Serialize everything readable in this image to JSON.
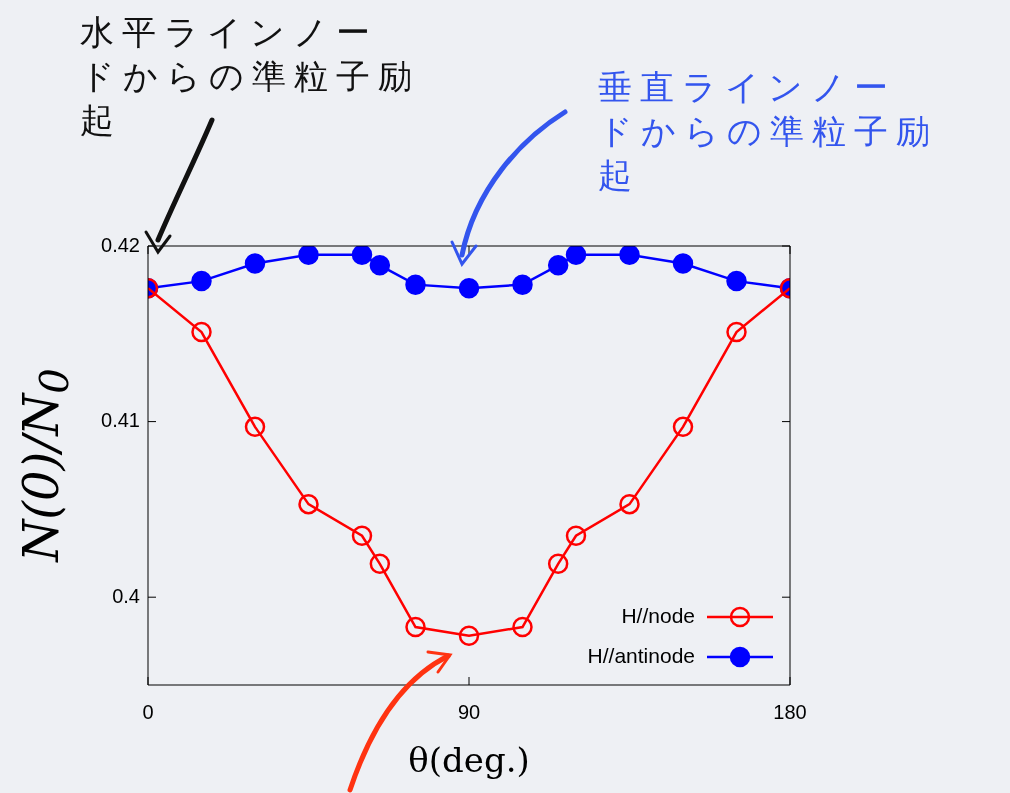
{
  "chart_data": {
    "type": "line",
    "xlabel": "θ(deg.)",
    "ylabel": "N(0)/N$_{0}$",
    "x": [
      0,
      15,
      30,
      45,
      60,
      65,
      75,
      90,
      105,
      115,
      120,
      135,
      150,
      165,
      180
    ],
    "series": [
      {
        "name": "H//node",
        "color": "#ff0000",
        "marker": "circle",
        "values": [
          0.4176,
          0.4151,
          0.4097,
          0.4053,
          0.4035,
          0.4019,
          0.3983,
          0.3978,
          0.3983,
          0.4019,
          0.4035,
          0.4053,
          0.4097,
          0.4151,
          0.4176
        ]
      },
      {
        "name": "H//antinode",
        "color": "#0000ff",
        "marker": "circle",
        "values": [
          0.4176,
          0.418,
          0.419,
          0.4195,
          0.4195,
          0.4189,
          0.4178,
          0.4176,
          0.4178,
          0.4189,
          0.4195,
          0.4195,
          0.419,
          0.418,
          0.4176
        ]
      }
    ],
    "xlim": [
      0,
      180
    ],
    "xticks": [
      0,
      90,
      180
    ],
    "ylim": [
      0.395,
      0.42
    ],
    "yticks": [
      0.4,
      0.41,
      0.42
    ],
    "grid": false,
    "legend": "bottom right",
    "annotations": [
      "水平ラインノードからの準粒子励起",
      "垂直ラインノードからの準粒子励起"
    ]
  }
}
